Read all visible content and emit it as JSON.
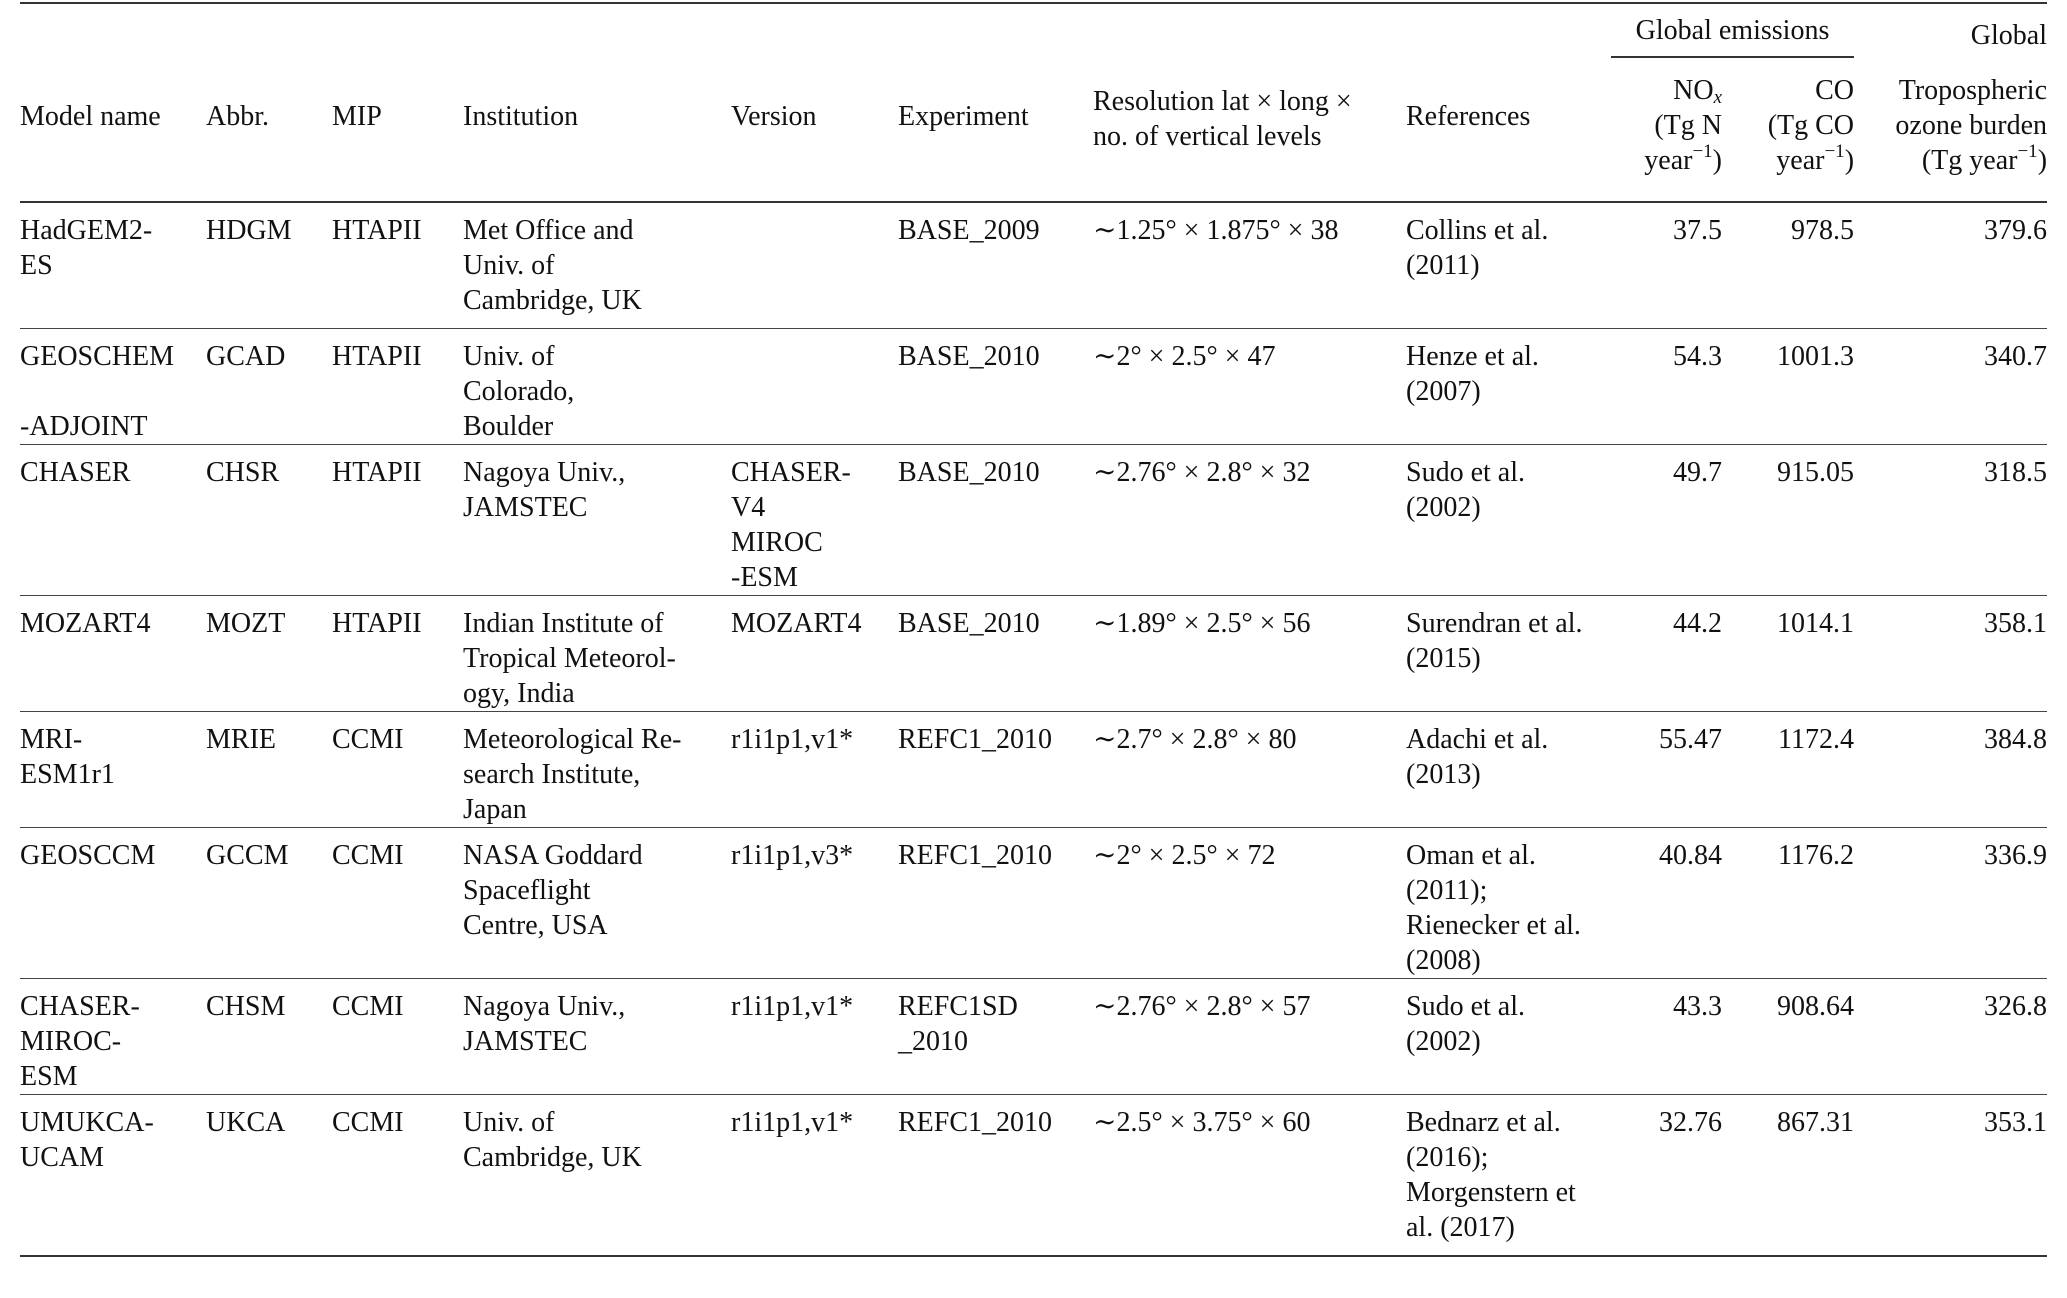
{
  "header": {
    "model_name": "Model name",
    "abbr": "Abbr.",
    "mip": "MIP",
    "institution": "Institution",
    "version": "Version",
    "experiment": "Experiment",
    "resolution": "Resolution lat × long ×\nno. of vertical levels",
    "references": "References",
    "global_emissions": "Global emissions",
    "global": "Global",
    "nox": {
      "base": "NO",
      "sub": "x",
      "unit": "(Tg N",
      "year": "year",
      "exp": "−1",
      "close": ")"
    },
    "co": {
      "base": "CO",
      "unit": "(Tg CO",
      "year": "year",
      "exp": "−1",
      "close": ")"
    },
    "burden": {
      "line1": "Tropospheric\nozone burden",
      "unit": "(Tg year",
      "exp": "−1",
      "close": ")"
    }
  },
  "rows": [
    {
      "model": "HadGEM2-\nES",
      "abbr": "HDGM",
      "mip": "HTAPII",
      "institution": "Met Office and\nUniv. of\nCambridge, UK",
      "version": "",
      "experiment": "BASE_2009",
      "resolution": "∼1.25° × 1.875° × 38",
      "references": "Collins et al.\n(2011)",
      "nox": "37.5",
      "co": "978.5",
      "burden": "379.6"
    },
    {
      "model": "GEOSCHEM\n\n-ADJOINT",
      "abbr": "GCAD",
      "mip": "HTAPII",
      "institution": "Univ. of\nColorado,\nBoulder",
      "version": "",
      "experiment": "BASE_2010",
      "resolution": "∼2° × 2.5° × 47",
      "references": "Henze et al.\n(2007)",
      "nox": "54.3",
      "co": "1001.3",
      "burden": "340.7"
    },
    {
      "model": "CHASER",
      "abbr": "CHSR",
      "mip": "HTAPII",
      "institution": "Nagoya Univ.,\nJAMSTEC",
      "version": "CHASER-\nV4\nMIROC\n-ESM",
      "experiment": "BASE_2010",
      "resolution": "∼2.76° × 2.8° × 32",
      "references": "Sudo et al.\n(2002)",
      "nox": "49.7",
      "co": "915.05",
      "burden": "318.5"
    },
    {
      "model": "MOZART4",
      "abbr": "MOZT",
      "mip": "HTAPII",
      "institution": "Indian Institute of\nTropical  Meteorol-\nogy, India",
      "version": "MOZART4",
      "experiment": "BASE_2010",
      "resolution": "∼1.89° × 2.5° × 56",
      "references": "Surendran et al.\n(2015)",
      "nox": "44.2",
      "co": "1014.1",
      "burden": "358.1"
    },
    {
      "model": "MRI-\nESM1r1",
      "abbr": "MRIE",
      "mip": "CCMI",
      "institution": "Meteorological Re-\nsearch Institute,\nJapan",
      "version": "r1i1p1,v1*",
      "experiment": "REFC1_2010",
      "resolution": "∼2.7° × 2.8° × 80",
      "references": "Adachi et al.\n(2013)",
      "nox": "55.47",
      "co": "1172.4",
      "burden": "384.8"
    },
    {
      "model": "GEOSCCM",
      "abbr": "GCCM",
      "mip": "CCMI",
      "institution": "NASA Goddard\nSpaceflight\nCentre, USA",
      "version": "r1i1p1,v3*",
      "experiment": "REFC1_2010",
      "resolution": "∼2° × 2.5° × 72",
      "references": "Oman et al.\n(2011);\nRienecker et al.\n(2008)",
      "nox": "40.84",
      "co": "1176.2",
      "burden": "336.9"
    },
    {
      "model": "CHASER-\nMIROC-\nESM",
      "abbr": "CHSM",
      "mip": "CCMI",
      "institution": "Nagoya Univ.,\nJAMSTEC",
      "version": "r1i1p1,v1*",
      "experiment": "REFC1SD\n_2010",
      "resolution": "∼2.76° × 2.8° × 57",
      "references": "Sudo et al.\n(2002)",
      "nox": "43.3",
      "co": "908.64",
      "burden": "326.8"
    },
    {
      "model": "UMUKCA-\nUCAM",
      "abbr": "UKCA",
      "mip": "CCMI",
      "institution": "Univ. of\nCambridge, UK",
      "version": "r1i1p1,v1*",
      "experiment": "REFC1_2010",
      "resolution": "∼2.5° × 3.75° × 60",
      "references": "Bednarz et al.\n(2016);\nMorgenstern  et\nal. (2017)",
      "nox": "32.76",
      "co": "867.31",
      "burden": "353.1"
    }
  ]
}
